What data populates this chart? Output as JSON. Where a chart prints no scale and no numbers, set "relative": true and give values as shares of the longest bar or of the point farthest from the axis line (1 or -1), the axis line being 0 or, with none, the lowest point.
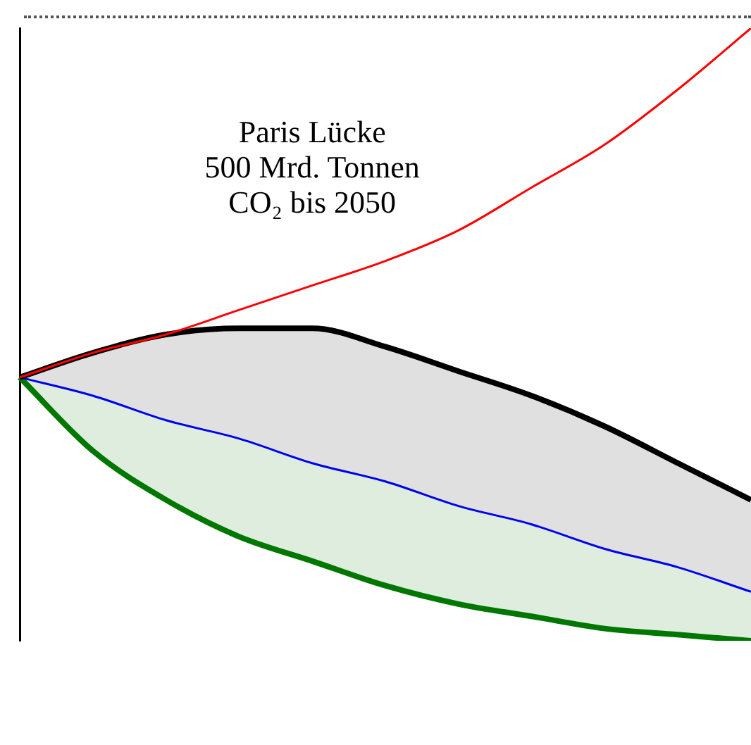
{
  "chart_data": {
    "type": "line",
    "relative": true,
    "categories": [
      null,
      null,
      null,
      null,
      null,
      null,
      null,
      null,
      null,
      null,
      null
    ],
    "series": [
      {
        "type": "line",
        "color": "#ff0000",
        "values": [
          0.43,
          0.47,
          0.5,
          0.54,
          0.58,
          0.62,
          0.67,
          0.74,
          0.81,
          0.9,
          1
        ]
      },
      {
        "type": "area",
        "color": "#000000",
        "values": [
          0.43,
          0.47,
          0.5,
          0.51,
          0.51,
          0.48,
          0.44,
          0.4,
          0.35,
          0.29,
          0.23
        ]
      },
      {
        "type": "line",
        "color": "#0000ff",
        "values": [
          0.43,
          0.4,
          0.36,
          0.33,
          0.29,
          0.26,
          0.22,
          0.19,
          0.15,
          0.12,
          0.08
        ]
      },
      {
        "type": "line",
        "color": "#007700",
        "values": [
          0.43,
          0.31,
          0.23,
          0.17,
          0.13,
          0.09,
          0.06,
          0.04,
          0.02,
          0.01,
          0
        ]
      }
    ],
    "annotations": [
      "Paris Lücke\n500 Mrd. Tonnen\nCO₂ bis 2050"
    ],
    "grid": false,
    "legend": false,
    "marker": "none"
  }
}
